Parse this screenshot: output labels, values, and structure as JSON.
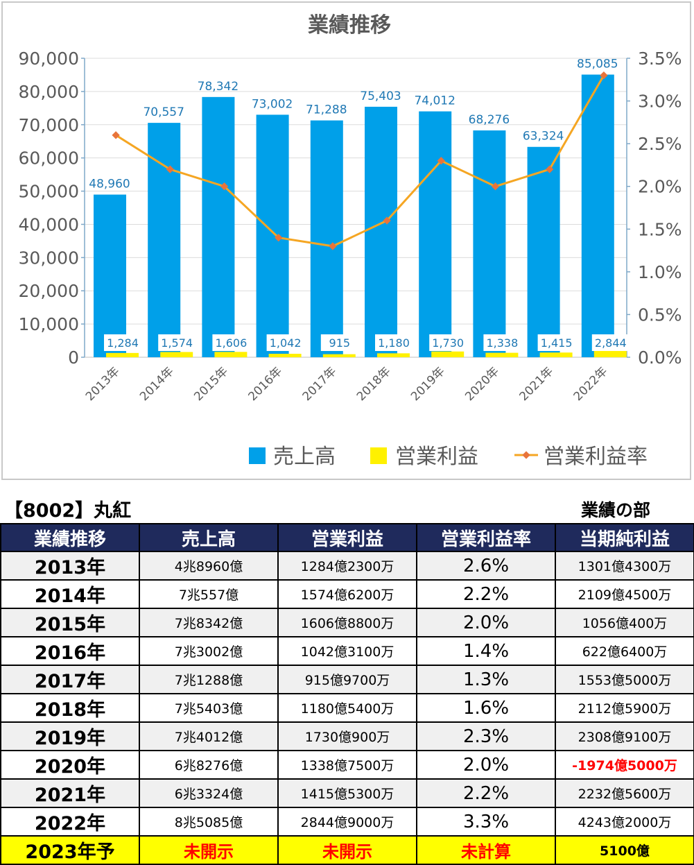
{
  "chart_data": {
    "type": "bar",
    "title": "業績推移",
    "categories": [
      "2013年",
      "2014年",
      "2015年",
      "2016年",
      "2017年",
      "2018年",
      "2019年",
      "2020年",
      "2021年",
      "2022年"
    ],
    "series": [
      {
        "name": "売上高",
        "kind": "bar",
        "axis": "left",
        "color": "#00a0e9",
        "values": [
          48960,
          70557,
          78342,
          73002,
          71288,
          75403,
          74012,
          68276,
          63324,
          85085
        ],
        "labels": [
          "48,960",
          "70,557",
          "78,342",
          "73,002",
          "71,288",
          "75,403",
          "74,012",
          "68,276",
          "63,324",
          "85,085"
        ]
      },
      {
        "name": "営業利益",
        "kind": "bar",
        "axis": "left",
        "color": "#fff100",
        "values": [
          1284,
          1574,
          1606,
          1042,
          915,
          1180,
          1730,
          1338,
          1415,
          2844
        ],
        "labels": [
          "1,284",
          "1,574",
          "1,606",
          "1,042",
          "915",
          "1,180",
          "1,730",
          "1,338",
          "1,415",
          "2,844"
        ]
      },
      {
        "name": "営業利益率",
        "kind": "line",
        "axis": "right",
        "color": "#f5a623",
        "values": [
          2.6,
          2.2,
          2.0,
          1.4,
          1.3,
          1.6,
          2.3,
          2.0,
          2.2,
          3.3
        ]
      }
    ],
    "ylim": [
      0,
      90000
    ],
    "yticks": [
      "0",
      "10,000",
      "20,000",
      "30,000",
      "40,000",
      "50,000",
      "60,000",
      "70,000",
      "80,000",
      "90,000"
    ],
    "y2lim": [
      0,
      3.5
    ],
    "y2ticks": [
      "0.0%",
      "0.5%",
      "1.0%",
      "1.5%",
      "2.0%",
      "2.5%",
      "3.0%",
      "3.5%"
    ],
    "legend_position": "bottom-right",
    "grid": true
  },
  "company": "【8002】丸紅",
  "section": "業績の部",
  "table": {
    "headers": [
      "業績推移",
      "売上高",
      "営業利益",
      "営業利益率",
      "当期純利益"
    ],
    "rows": [
      [
        "2013年",
        "4兆8960億",
        "1284億2300万",
        "2.6%",
        "1301億4300万"
      ],
      [
        "2014年",
        "7兆557億",
        "1574億6200万",
        "2.2%",
        "2109億4500万"
      ],
      [
        "2015年",
        "7兆8342億",
        "1606億8800万",
        "2.0%",
        "1056億400万"
      ],
      [
        "2016年",
        "7兆3002億",
        "1042億3100万",
        "1.4%",
        "622億6400万"
      ],
      [
        "2017年",
        "7兆1288億",
        "915億9700万",
        "1.3%",
        "1553億5000万"
      ],
      [
        "2018年",
        "7兆5403億",
        "1180億5400万",
        "1.6%",
        "2112億5900万"
      ],
      [
        "2019年",
        "7兆4012億",
        "1730億900万",
        "2.3%",
        "2308億9100万"
      ],
      [
        "2020年",
        "6兆8276億",
        "1338億7500万",
        "2.0%",
        "-1974億5000万"
      ],
      [
        "2021年",
        "6兆3324億",
        "1415億5300万",
        "2.2%",
        "2232億5600万"
      ],
      [
        "2022年",
        "8兆5085億",
        "2844億9000万",
        "3.3%",
        "4243億2000万"
      ]
    ],
    "forecast": [
      "2023年予",
      "未開示",
      "未開示",
      "未計算",
      "5100億"
    ],
    "negative_color": "#ff0000",
    "header_bg": "#1f2a5c",
    "forecast_bg": "#ffff00"
  }
}
